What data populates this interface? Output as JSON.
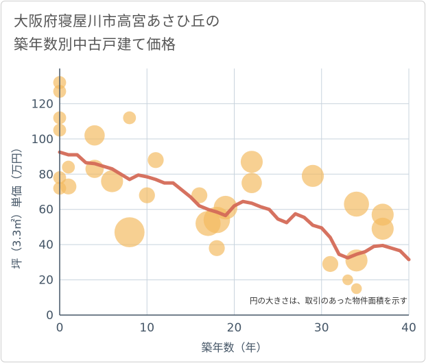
{
  "title_line1": "大阪府寝屋川市高宮あさひ丘の",
  "title_line2": "築年数別中古戸建て価格",
  "chart_data": {
    "type": "scatter",
    "xlabel": "築年数（年）",
    "ylabel": "坪（3.3㎡）単価（万円）",
    "xlim": [
      0,
      40
    ],
    "ylim": [
      0,
      140
    ],
    "x_ticks": [
      0,
      10,
      20,
      30,
      40
    ],
    "y_ticks": [
      0,
      20,
      40,
      60,
      80,
      100,
      120
    ],
    "grid": true,
    "note": "円の大きさは、取引のあった物件面積を示す",
    "colors": {
      "bubble": "#f3b95f",
      "line": "#d46a57",
      "grid": "#c8d3dd",
      "axis": "#445566"
    },
    "bubbles": [
      {
        "x": 0,
        "y": 132,
        "size": 1
      },
      {
        "x": 0,
        "y": 127,
        "size": 1
      },
      {
        "x": 0,
        "y": 112,
        "size": 1
      },
      {
        "x": 0,
        "y": 105,
        "size": 1
      },
      {
        "x": 0,
        "y": 78,
        "size": 1
      },
      {
        "x": 0,
        "y": 72,
        "size": 1
      },
      {
        "x": 1,
        "y": 84,
        "size": 1
      },
      {
        "x": 1,
        "y": 73,
        "size": 2
      },
      {
        "x": 4,
        "y": 102,
        "size": 4
      },
      {
        "x": 4,
        "y": 83,
        "size": 3
      },
      {
        "x": 6,
        "y": 76,
        "size": 5
      },
      {
        "x": 8,
        "y": 112,
        "size": 1
      },
      {
        "x": 8,
        "y": 47,
        "size": 11
      },
      {
        "x": 10,
        "y": 68,
        "size": 2
      },
      {
        "x": 11,
        "y": 88,
        "size": 2
      },
      {
        "x": 16,
        "y": 68,
        "size": 2
      },
      {
        "x": 17,
        "y": 52,
        "size": 7
      },
      {
        "x": 18,
        "y": 54,
        "size": 8
      },
      {
        "x": 18,
        "y": 38,
        "size": 2
      },
      {
        "x": 19,
        "y": 61,
        "size": 6
      },
      {
        "x": 22,
        "y": 87,
        "size": 5
      },
      {
        "x": 22,
        "y": 75,
        "size": 4
      },
      {
        "x": 29,
        "y": 79,
        "size": 5
      },
      {
        "x": 31,
        "y": 29,
        "size": 2
      },
      {
        "x": 33,
        "y": 20,
        "size": 0.5
      },
      {
        "x": 34,
        "y": 63,
        "size": 7
      },
      {
        "x": 34,
        "y": 31,
        "size": 5
      },
      {
        "x": 34,
        "y": 15,
        "size": 0.5
      },
      {
        "x": 37,
        "y": 57,
        "size": 5
      },
      {
        "x": 37,
        "y": 49,
        "size": 5
      }
    ],
    "trend": {
      "x": [
        0,
        1,
        2,
        3,
        4,
        5,
        6,
        7,
        8,
        9,
        10,
        11,
        12,
        13,
        14,
        15,
        16,
        17,
        18,
        19,
        20,
        21,
        22,
        23,
        24,
        25,
        26,
        27,
        28,
        29,
        30,
        31,
        32,
        33,
        34,
        35,
        36,
        37,
        38,
        39,
        40
      ],
      "y": [
        92.5,
        91,
        91,
        86.5,
        86,
        84.5,
        83,
        80,
        77,
        79.5,
        78.5,
        77,
        75,
        75,
        71,
        67,
        62,
        60,
        58.5,
        56.5,
        62,
        64.5,
        63.5,
        61.5,
        60,
        54.5,
        52.5,
        57.5,
        55.5,
        51,
        49.5,
        44,
        34.5,
        32.5,
        34.5,
        36,
        39,
        39.5,
        38,
        36.5,
        31.5
      ]
    }
  }
}
